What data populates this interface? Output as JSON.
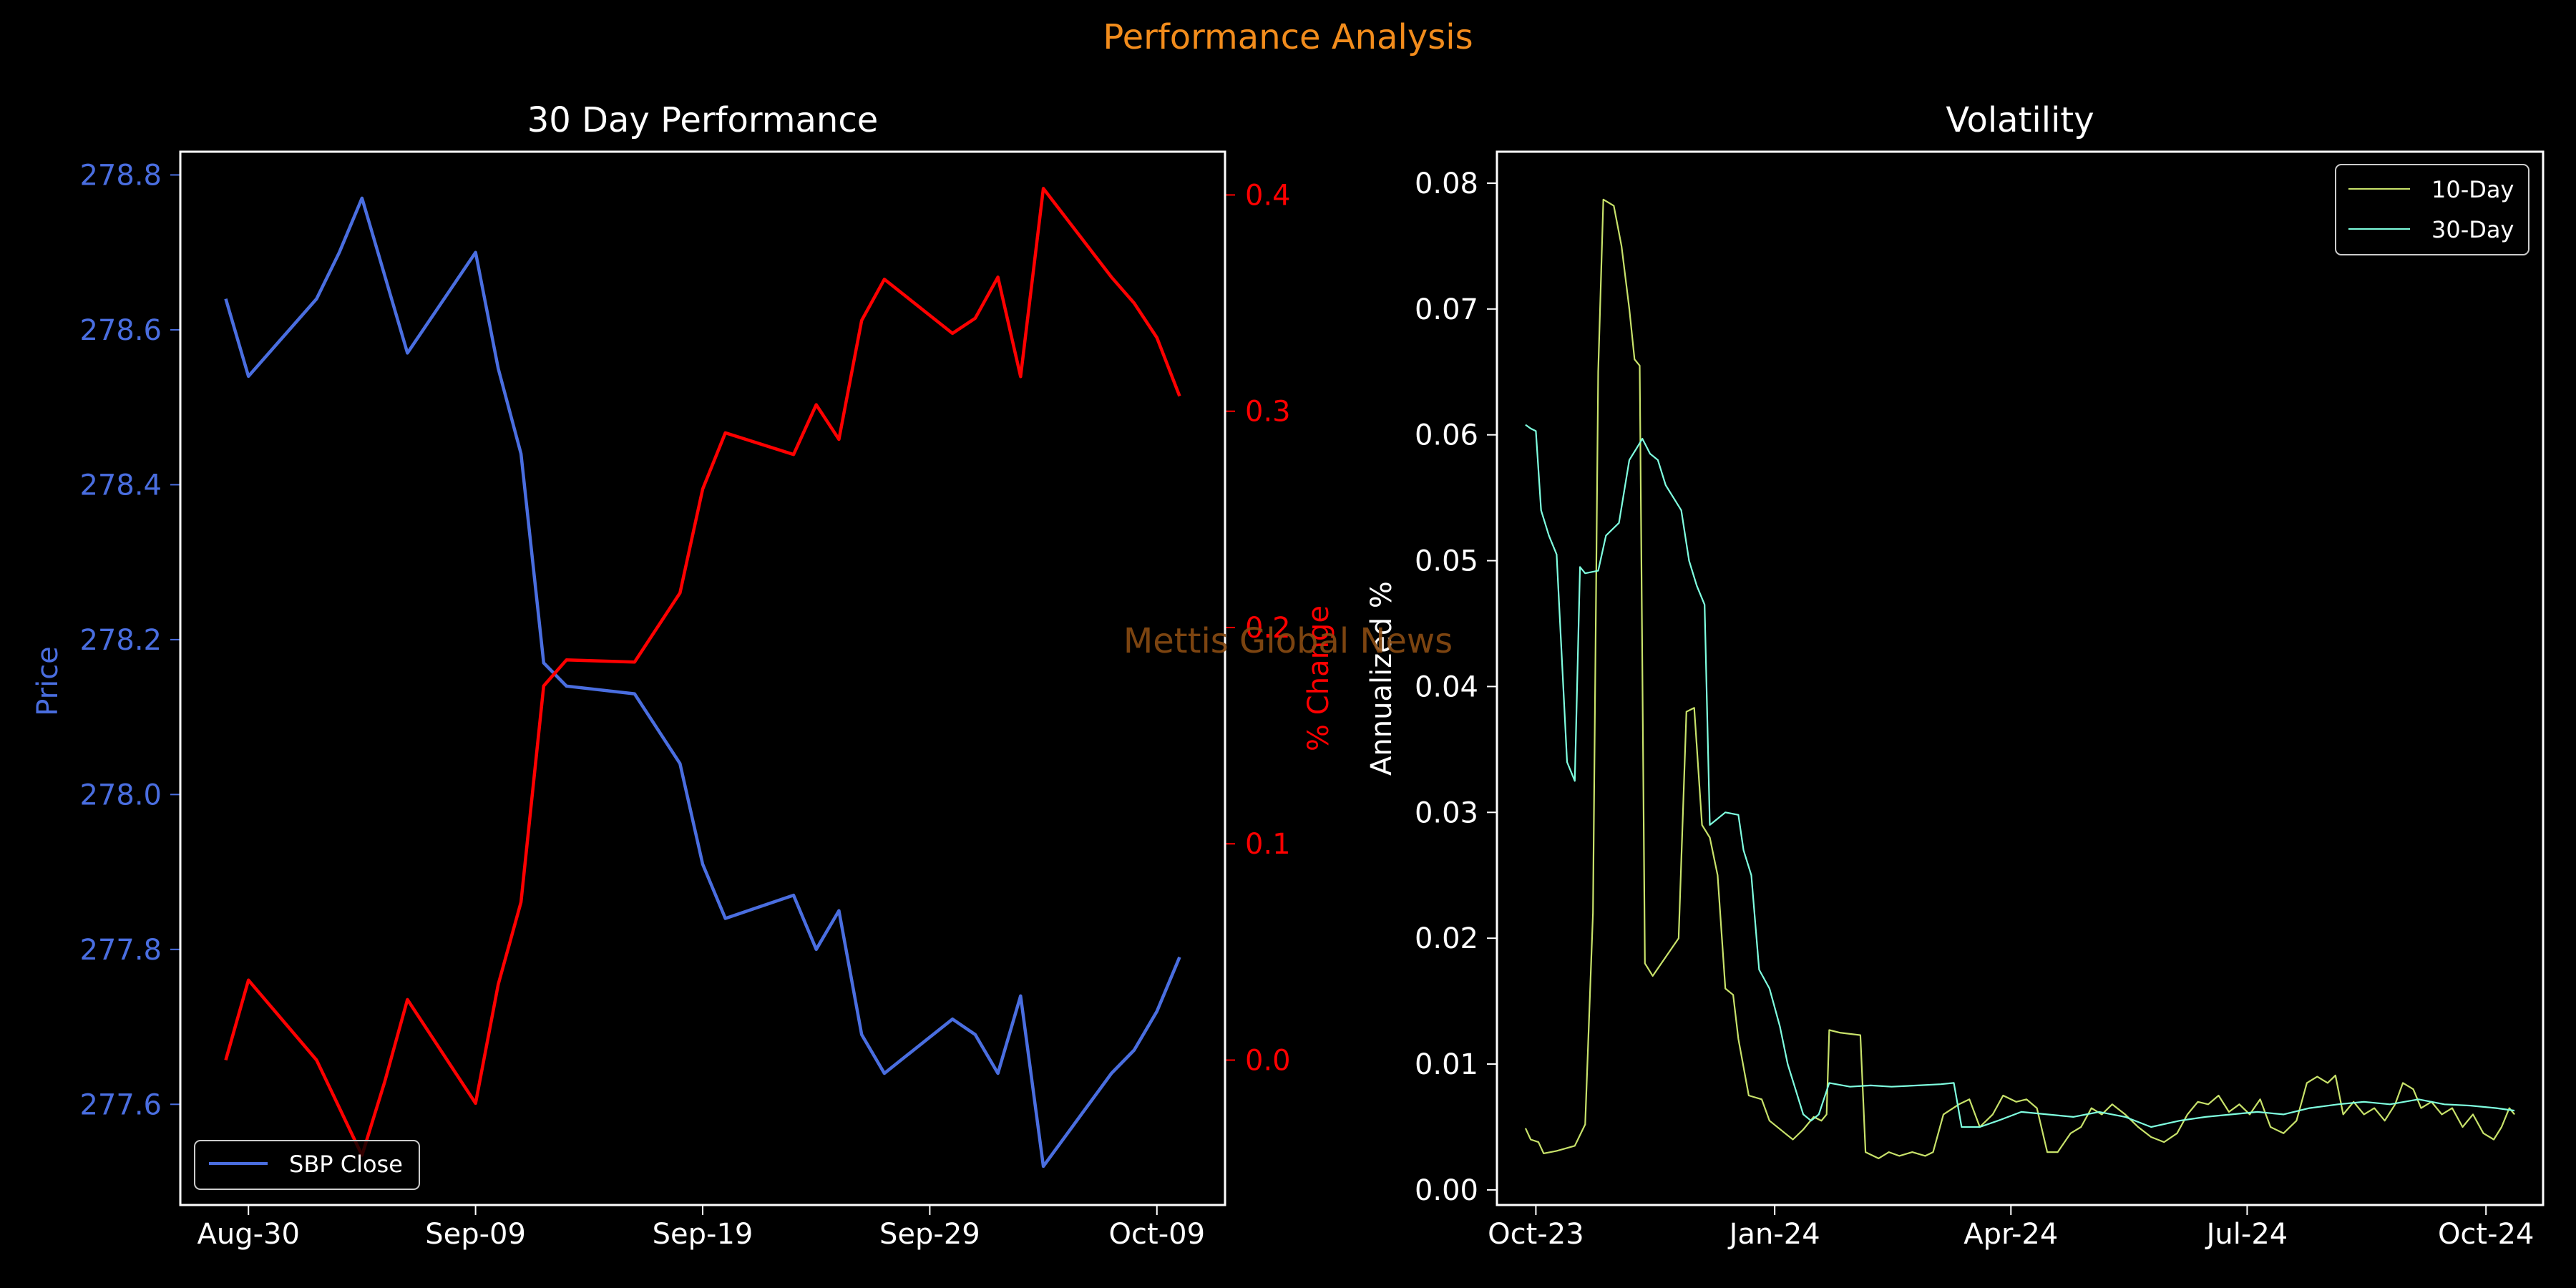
{
  "figure": {
    "suptitle": "Performance Analysis",
    "watermark": "Mettis Global News",
    "colors": {
      "background": "#000000",
      "suptitle": "#f28c1c",
      "watermark": "#8a4b12",
      "axes": "#ffffff"
    }
  },
  "chart_data": [
    {
      "id": "perf",
      "type": "line",
      "title": "30 Day Performance",
      "xlabel": "",
      "x_tick_labels": [
        "Aug-30",
        "Sep-09",
        "Sep-19",
        "Sep-29",
        "Oct-09"
      ],
      "x_tick_dates": [
        "2024-08-30",
        "2024-09-09",
        "2024-09-19",
        "2024-09-29",
        "2024-10-09"
      ],
      "xlim": [
        "2024-08-27",
        "2024-10-12"
      ],
      "grid": false,
      "legend": {
        "position": "lower-left",
        "entries": [
          "SBP Close"
        ]
      },
      "left_axis": {
        "label": "Price",
        "color": "#4a6ee0",
        "ylim": [
          277.47,
          278.83
        ],
        "ticks": [
          "277.6",
          "277.8",
          "278.0",
          "278.2",
          "278.4",
          "278.6",
          "278.8"
        ]
      },
      "right_axis": {
        "label": "% Change",
        "color": "#ff0000",
        "ylim": [
          -0.067,
          0.42
        ],
        "ticks": [
          "0.0",
          "0.1",
          "0.2",
          "0.3",
          "0.4"
        ]
      },
      "series": [
        {
          "name": "SBP Close",
          "axis": "left",
          "color": "#4a6ee0",
          "x": [
            "2024-08-29",
            "2024-08-30",
            "2024-09-02",
            "2024-09-03",
            "2024-09-04",
            "2024-09-05",
            "2024-09-06",
            "2024-09-09",
            "2024-09-10",
            "2024-09-11",
            "2024-09-12",
            "2024-09-13",
            "2024-09-16",
            "2024-09-18",
            "2024-09-19",
            "2024-09-20",
            "2024-09-23",
            "2024-09-24",
            "2024-09-25",
            "2024-09-26",
            "2024-09-27",
            "2024-09-30",
            "2024-10-01",
            "2024-10-02",
            "2024-10-03",
            "2024-10-04",
            "2024-10-07",
            "2024-10-08",
            "2024-10-09",
            "2024-10-10"
          ],
          "values": [
            278.64,
            278.54,
            278.64,
            278.7,
            278.77,
            278.67,
            278.57,
            278.7,
            278.55,
            278.44,
            278.17,
            278.14,
            278.13,
            278.04,
            277.91,
            277.84,
            277.87,
            277.8,
            277.85,
            277.69,
            277.64,
            277.71,
            277.69,
            277.64,
            277.74,
            277.52,
            277.64,
            277.67,
            277.72,
            277.79
          ]
        },
        {
          "name": "% Change",
          "axis": "right",
          "color": "#ff0000",
          "x": [
            "2024-08-29",
            "2024-08-30",
            "2024-09-02",
            "2024-09-03",
            "2024-09-04",
            "2024-09-05",
            "2024-09-06",
            "2024-09-09",
            "2024-09-10",
            "2024-09-11",
            "2024-09-12",
            "2024-09-13",
            "2024-09-16",
            "2024-09-18",
            "2024-09-19",
            "2024-09-20",
            "2024-09-23",
            "2024-09-24",
            "2024-09-25",
            "2024-09-26",
            "2024-09-27",
            "2024-09-30",
            "2024-10-01",
            "2024-10-02",
            "2024-10-03",
            "2024-10-04",
            "2024-10-07",
            "2024-10-08",
            "2024-10-09",
            "2024-10-10"
          ],
          "values": [
            0.0,
            0.037,
            0.0,
            -0.022,
            -0.044,
            -0.01,
            0.028,
            -0.02,
            0.035,
            0.073,
            0.173,
            0.185,
            0.184,
            0.216,
            0.264,
            0.29,
            0.28,
            0.303,
            0.287,
            0.342,
            0.361,
            0.336,
            0.343,
            0.362,
            0.316,
            0.403,
            0.362,
            0.35,
            0.334,
            0.307
          ]
        }
      ]
    },
    {
      "id": "vol",
      "type": "line",
      "title": "Volatility",
      "xlabel": "",
      "ylabel": "Annualized %",
      "x_tick_labels": [
        "Oct-23",
        "Jan-24",
        "Apr-24",
        "Jul-24",
        "Oct-24"
      ],
      "x_tick_dates": [
        "2023-10-01",
        "2024-01-01",
        "2024-04-01",
        "2024-07-01",
        "2024-10-01"
      ],
      "xlim": [
        "2023-09-16",
        "2024-10-23"
      ],
      "ylim": [
        -0.0012,
        0.0825
      ],
      "y_ticks": [
        "0.00",
        "0.01",
        "0.02",
        "0.03",
        "0.04",
        "0.05",
        "0.06",
        "0.07",
        "0.08"
      ],
      "grid": false,
      "legend": {
        "position": "top-right",
        "entries": [
          "10-Day",
          "30-Day"
        ]
      },
      "series": [
        {
          "name": "10-Day",
          "color": "#c8e26a",
          "points": [
            [
              "2023-09-27",
              0.0049
            ],
            [
              "2023-09-29",
              0.004
            ],
            [
              "2023-10-02",
              0.0038
            ],
            [
              "2023-10-04",
              0.0029
            ],
            [
              "2023-10-09",
              0.0031
            ],
            [
              "2023-10-16",
              0.0035
            ],
            [
              "2023-10-20",
              0.0052
            ],
            [
              "2023-10-23",
              0.022
            ],
            [
              "2023-10-25",
              0.065
            ],
            [
              "2023-10-27",
              0.0787
            ],
            [
              "2023-10-31",
              0.0782
            ],
            [
              "2023-11-03",
              0.075
            ],
            [
              "2023-11-06",
              0.07
            ],
            [
              "2023-11-08",
              0.066
            ],
            [
              "2023-11-10",
              0.0655
            ],
            [
              "2023-11-12",
              0.018
            ],
            [
              "2023-11-15",
              0.017
            ],
            [
              "2023-11-20",
              0.0185
            ],
            [
              "2023-11-25",
              0.02
            ],
            [
              "2023-11-28",
              0.038
            ],
            [
              "2023-12-01",
              0.0383
            ],
            [
              "2023-12-04",
              0.029
            ],
            [
              "2023-12-07",
              0.028
            ],
            [
              "2023-12-10",
              0.025
            ],
            [
              "2023-12-13",
              0.016
            ],
            [
              "2023-12-16",
              0.0155
            ],
            [
              "2023-12-18",
              0.012
            ],
            [
              "2023-12-22",
              0.0075
            ],
            [
              "2023-12-27",
              0.0072
            ],
            [
              "2023-12-30",
              0.0055
            ],
            [
              "2024-01-05",
              0.0045
            ],
            [
              "2024-01-08",
              0.004
            ],
            [
              "2024-01-12",
              0.0048
            ],
            [
              "2024-01-16",
              0.0058
            ],
            [
              "2024-01-19",
              0.0055
            ],
            [
              "2024-01-21",
              0.006
            ],
            [
              "2024-01-22",
              0.0127
            ],
            [
              "2024-01-26",
              0.0125
            ],
            [
              "2024-02-03",
              0.0123
            ],
            [
              "2024-02-05",
              0.003
            ],
            [
              "2024-02-10",
              0.0025
            ],
            [
              "2024-02-14",
              0.003
            ],
            [
              "2024-02-18",
              0.0027
            ],
            [
              "2024-02-23",
              0.003
            ],
            [
              "2024-02-28",
              0.0027
            ],
            [
              "2024-03-02",
              0.003
            ],
            [
              "2024-03-06",
              0.006
            ],
            [
              "2024-03-12",
              0.0068
            ],
            [
              "2024-03-16",
              0.0072
            ],
            [
              "2024-03-20",
              0.005
            ],
            [
              "2024-03-25",
              0.006
            ],
            [
              "2024-03-29",
              0.0075
            ],
            [
              "2024-04-03",
              0.007
            ],
            [
              "2024-04-07",
              0.0072
            ],
            [
              "2024-04-11",
              0.0065
            ],
            [
              "2024-04-15",
              0.003
            ],
            [
              "2024-04-19",
              0.003
            ],
            [
              "2024-04-24",
              0.0045
            ],
            [
              "2024-04-28",
              0.005
            ],
            [
              "2024-05-02",
              0.0065
            ],
            [
              "2024-05-06",
              0.006
            ],
            [
              "2024-05-10",
              0.0068
            ],
            [
              "2024-05-15",
              0.006
            ],
            [
              "2024-05-20",
              0.005
            ],
            [
              "2024-05-25",
              0.0042
            ],
            [
              "2024-05-30",
              0.0038
            ],
            [
              "2024-06-04",
              0.0045
            ],
            [
              "2024-06-08",
              0.006
            ],
            [
              "2024-06-12",
              0.007
            ],
            [
              "2024-06-16",
              0.0068
            ],
            [
              "2024-06-20",
              0.0075
            ],
            [
              "2024-06-24",
              0.0062
            ],
            [
              "2024-06-28",
              0.0068
            ],
            [
              "2024-07-02",
              0.006
            ],
            [
              "2024-07-06",
              0.0072
            ],
            [
              "2024-07-10",
              0.005
            ],
            [
              "2024-07-15",
              0.0045
            ],
            [
              "2024-07-20",
              0.0055
            ],
            [
              "2024-07-24",
              0.0085
            ],
            [
              "2024-07-28",
              0.009
            ],
            [
              "2024-08-01",
              0.0085
            ],
            [
              "2024-08-04",
              0.0091
            ],
            [
              "2024-08-07",
              0.006
            ],
            [
              "2024-08-11",
              0.007
            ],
            [
              "2024-08-15",
              0.006
            ],
            [
              "2024-08-19",
              0.0065
            ],
            [
              "2024-08-23",
              0.0055
            ],
            [
              "2024-08-27",
              0.0068
            ],
            [
              "2024-08-30",
              0.0085
            ],
            [
              "2024-09-03",
              0.008
            ],
            [
              "2024-09-06",
              0.0065
            ],
            [
              "2024-09-10",
              0.007
            ],
            [
              "2024-09-14",
              0.006
            ],
            [
              "2024-09-18",
              0.0065
            ],
            [
              "2024-09-22",
              0.005
            ],
            [
              "2024-09-26",
              0.006
            ],
            [
              "2024-09-30",
              0.0045
            ],
            [
              "2024-10-04",
              0.004
            ],
            [
              "2024-10-07",
              0.005
            ],
            [
              "2024-10-10",
              0.0065
            ],
            [
              "2024-10-12",
              0.006
            ]
          ]
        },
        {
          "name": "30-Day",
          "color": "#7fffe0",
          "points": [
            [
              "2023-09-27",
              0.0608
            ],
            [
              "2023-09-29",
              0.0605
            ],
            [
              "2023-10-01",
              0.0603
            ],
            [
              "2023-10-03",
              0.054
            ],
            [
              "2023-10-06",
              0.052
            ],
            [
              "2023-10-09",
              0.0505
            ],
            [
              "2023-10-13",
              0.034
            ],
            [
              "2023-10-16",
              0.0325
            ],
            [
              "2023-10-18",
              0.0495
            ],
            [
              "2023-10-20",
              0.049
            ],
            [
              "2023-10-25",
              0.0492
            ],
            [
              "2023-10-28",
              0.052
            ],
            [
              "2023-11-02",
              0.053
            ],
            [
              "2023-11-06",
              0.058
            ],
            [
              "2023-11-09",
              0.059
            ],
            [
              "2023-11-11",
              0.0597
            ],
            [
              "2023-11-14",
              0.0585
            ],
            [
              "2023-11-17",
              0.058
            ],
            [
              "2023-11-20",
              0.056
            ],
            [
              "2023-11-23",
              0.055
            ],
            [
              "2023-11-26",
              0.054
            ],
            [
              "2023-11-29",
              0.05
            ],
            [
              "2023-12-02",
              0.048
            ],
            [
              "2023-12-05",
              0.0465
            ],
            [
              "2023-12-07",
              0.029
            ],
            [
              "2023-12-10",
              0.0295
            ],
            [
              "2023-12-13",
              0.03
            ],
            [
              "2023-12-18",
              0.0298
            ],
            [
              "2023-12-20",
              0.027
            ],
            [
              "2023-12-23",
              0.025
            ],
            [
              "2023-12-26",
              0.0175
            ],
            [
              "2023-12-30",
              0.016
            ],
            [
              "2024-01-03",
              0.013
            ],
            [
              "2024-01-06",
              0.01
            ],
            [
              "2024-01-09",
              0.008
            ],
            [
              "2024-01-12",
              0.006
            ],
            [
              "2024-01-15",
              0.0055
            ],
            [
              "2024-01-18",
              0.006
            ],
            [
              "2024-01-22",
              0.0085
            ],
            [
              "2024-01-30",
              0.0082
            ],
            [
              "2024-02-07",
              0.0083
            ],
            [
              "2024-02-15",
              0.0082
            ],
            [
              "2024-02-25",
              0.0083
            ],
            [
              "2024-03-05",
              0.0084
            ],
            [
              "2024-03-10",
              0.0085
            ],
            [
              "2024-03-13",
              0.005
            ],
            [
              "2024-03-20",
              0.005
            ],
            [
              "2024-03-27",
              0.0055
            ],
            [
              "2024-04-05",
              0.0062
            ],
            [
              "2024-04-15",
              0.006
            ],
            [
              "2024-04-25",
              0.0058
            ],
            [
              "2024-05-05",
              0.0062
            ],
            [
              "2024-05-15",
              0.0058
            ],
            [
              "2024-05-25",
              0.005
            ],
            [
              "2024-06-05",
              0.0055
            ],
            [
              "2024-06-15",
              0.0058
            ],
            [
              "2024-06-25",
              0.006
            ],
            [
              "2024-07-05",
              0.0062
            ],
            [
              "2024-07-15",
              0.006
            ],
            [
              "2024-07-25",
              0.0065
            ],
            [
              "2024-08-05",
              0.0068
            ],
            [
              "2024-08-15",
              0.007
            ],
            [
              "2024-08-25",
              0.0068
            ],
            [
              "2024-09-05",
              0.0072
            ],
            [
              "2024-09-15",
              0.0068
            ],
            [
              "2024-09-25",
              0.0067
            ],
            [
              "2024-10-05",
              0.0065
            ],
            [
              "2024-10-12",
              0.0063
            ]
          ]
        }
      ]
    }
  ]
}
